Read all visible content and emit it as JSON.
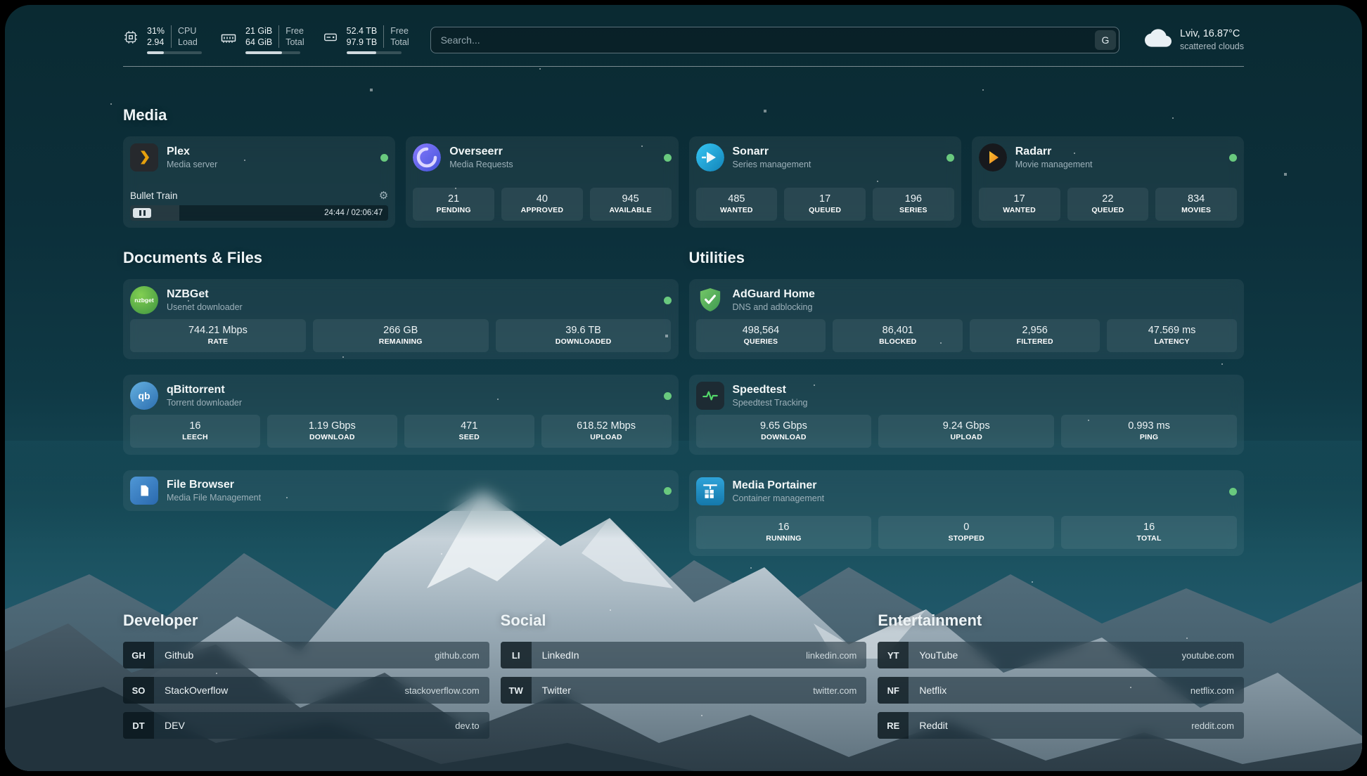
{
  "topbar": {
    "metrics": [
      {
        "id": "cpu",
        "v1": "31%",
        "v2": "2.94",
        "l1": "CPU",
        "l2": "Load",
        "pct": 31
      },
      {
        "id": "ram",
        "v1": "21 GiB",
        "v2": "64 GiB",
        "l1": "Free",
        "l2": "Total",
        "pct": 67
      },
      {
        "id": "disk",
        "v1": "52.4 TB",
        "v2": "97.9 TB",
        "l1": "Free",
        "l2": "Total",
        "pct": 54
      }
    ],
    "search": {
      "placeholder": "Search...",
      "engine_label": "G"
    },
    "weather": {
      "location": "Lviv, 16.87°C",
      "condition": "scattered clouds"
    }
  },
  "sections": {
    "media": "Media",
    "documents": "Documents & Files",
    "utilities": "Utilities",
    "developer": "Developer",
    "social": "Social",
    "entertainment": "Entertainment"
  },
  "apps": {
    "plex": {
      "name": "Plex",
      "subtitle": "Media server",
      "now_playing": "Bullet Train",
      "time": "24:44 / 02:06:47",
      "progress_pct": 19
    },
    "overseerr": {
      "name": "Overseerr",
      "subtitle": "Media Requests",
      "stats": [
        {
          "value": "21",
          "label": "PENDING"
        },
        {
          "value": "40",
          "label": "APPROVED"
        },
        {
          "value": "945",
          "label": "AVAILABLE"
        }
      ]
    },
    "sonarr": {
      "name": "Sonarr",
      "subtitle": "Series management",
      "stats": [
        {
          "value": "485",
          "label": "WANTED"
        },
        {
          "value": "17",
          "label": "QUEUED"
        },
        {
          "value": "196",
          "label": "SERIES"
        }
      ]
    },
    "radarr": {
      "name": "Radarr",
      "subtitle": "Movie management",
      "stats": [
        {
          "value": "17",
          "label": "WANTED"
        },
        {
          "value": "22",
          "label": "QUEUED"
        },
        {
          "value": "834",
          "label": "MOVIES"
        }
      ]
    },
    "nzbget": {
      "name": "NZBGet",
      "subtitle": "Usenet downloader",
      "icon_text": "nzbget",
      "stats": [
        {
          "value": "744.21 Mbps",
          "label": "RATE"
        },
        {
          "value": "266 GB",
          "label": "REMAINING"
        },
        {
          "value": "39.6 TB",
          "label": "DOWNLOADED"
        }
      ]
    },
    "qbittorrent": {
      "name": "qBittorrent",
      "subtitle": "Torrent downloader",
      "icon_text": "qb",
      "stats": [
        {
          "value": "16",
          "label": "LEECH"
        },
        {
          "value": "1.19 Gbps",
          "label": "DOWNLOAD"
        },
        {
          "value": "471",
          "label": "SEED"
        },
        {
          "value": "618.52 Mbps",
          "label": "UPLOAD"
        }
      ]
    },
    "filebrowser": {
      "name": "File Browser",
      "subtitle": "Media File Management"
    },
    "adguard": {
      "name": "AdGuard Home",
      "subtitle": "DNS and adblocking",
      "stats": [
        {
          "value": "498,564",
          "label": "QUERIES"
        },
        {
          "value": "86,401",
          "label": "BLOCKED"
        },
        {
          "value": "2,956",
          "label": "FILTERED"
        },
        {
          "value": "47.569 ms",
          "label": "LATENCY"
        }
      ]
    },
    "speedtest": {
      "name": "Speedtest",
      "subtitle": "Speedtest Tracking",
      "stats": [
        {
          "value": "9.65 Gbps",
          "label": "DOWNLOAD"
        },
        {
          "value": "9.24 Gbps",
          "label": "UPLOAD"
        },
        {
          "value": "0.993 ms",
          "label": "PING"
        }
      ]
    },
    "portainer": {
      "name": "Media Portainer",
      "subtitle": "Container management",
      "stats": [
        {
          "value": "16",
          "label": "RUNNING"
        },
        {
          "value": "0",
          "label": "STOPPED"
        },
        {
          "value": "16",
          "label": "TOTAL"
        }
      ]
    }
  },
  "links": {
    "developer": [
      {
        "badge": "GH",
        "name": "Github",
        "url": "github.com"
      },
      {
        "badge": "SO",
        "name": "StackOverflow",
        "url": "stackoverflow.com"
      },
      {
        "badge": "DT",
        "name": "DEV",
        "url": "dev.to"
      }
    ],
    "social": [
      {
        "badge": "LI",
        "name": "LinkedIn",
        "url": "linkedin.com"
      },
      {
        "badge": "TW",
        "name": "Twitter",
        "url": "twitter.com"
      }
    ],
    "entertainment": [
      {
        "badge": "YT",
        "name": "YouTube",
        "url": "youtube.com"
      },
      {
        "badge": "NF",
        "name": "Netflix",
        "url": "netflix.com"
      },
      {
        "badge": "RE",
        "name": "Reddit",
        "url": "reddit.com"
      }
    ]
  },
  "colors": {
    "status_online": "#69c97e",
    "plex_accent": "#e5a00d",
    "background_teal": "#0f3945"
  }
}
